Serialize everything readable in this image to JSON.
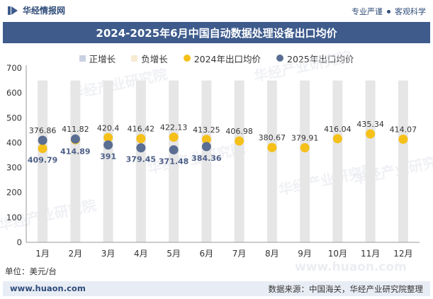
{
  "header": {
    "brand": "华经情报网",
    "tag_left": "专业严谨",
    "tag_right": "客观科学"
  },
  "watermarks": [
    "华经产业研究院",
    "华经产业研究院",
    "华经产业研究院",
    "华经产业研究院",
    "华经产业研究院",
    "华经产业研究院"
  ],
  "bottom_watermark": "www.huaon.com",
  "chart_data": {
    "type": "scatter",
    "title": "2024-2025年6月中国自动数据处理设备出口均价",
    "categories": [
      "1月",
      "2月",
      "3月",
      "4月",
      "5月",
      "6月",
      "7月",
      "8月",
      "9月",
      "10月",
      "11月",
      "12月"
    ],
    "ylim": [
      0,
      700
    ],
    "yticks": [
      0,
      100,
      200,
      300,
      400,
      500,
      600,
      700
    ],
    "legend": [
      "正增长",
      "负增长",
      "2024年出口均价",
      "2025年出口均价"
    ],
    "series": [
      {
        "name": "2024年出口均价",
        "color": "#f5c01a",
        "values": [
          376.86,
          411.82,
          420.4,
          416.42,
          422.13,
          413.25,
          406.98,
          380.67,
          379.91,
          416.04,
          435.34,
          414.07
        ],
        "labels": [
          "376.86",
          "411.82",
          "420.4",
          "416.42",
          "422.13",
          "413.25",
          "406.98",
          "380.67",
          "379.91",
          "416.04",
          "435.34",
          "414.07"
        ]
      },
      {
        "name": "2025年出口均价",
        "color": "#5a6d92",
        "values": [
          409.79,
          414.89,
          391,
          379.45,
          371.48,
          384.36
        ],
        "labels": [
          "409.79",
          "414.89",
          "391",
          "379.45",
          "371.48",
          "384.36"
        ]
      }
    ],
    "legend_colors": {
      "positive": "#c9d1e1",
      "negative": "#f7ebd3"
    },
    "grid": false
  },
  "unit": "单位：美元/台",
  "footer": {
    "site": "www.huaon.com",
    "source": "数据来源：中国海关，华经产业研究院整理"
  }
}
